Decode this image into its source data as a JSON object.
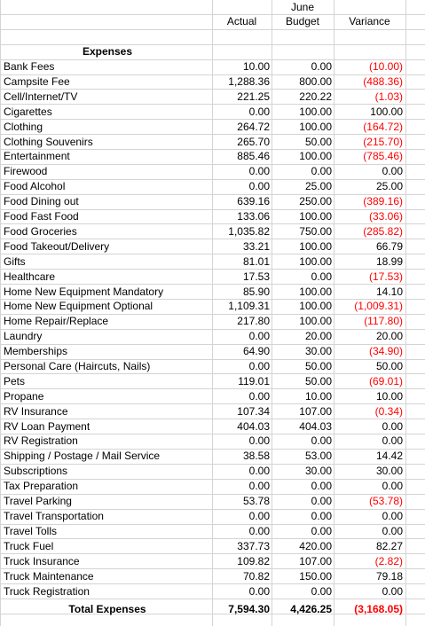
{
  "header": {
    "actual": "Actual",
    "month": "June",
    "budget": "Budget",
    "variance": "Variance"
  },
  "section_title": "Expenses",
  "rows": [
    {
      "label": "Bank Fees",
      "actual": "10.00",
      "budget": "0.00",
      "variance": "(10.00)",
      "negative": true
    },
    {
      "label": "Campsite Fee",
      "actual": "1,288.36",
      "budget": "800.00",
      "variance": "(488.36)",
      "negative": true
    },
    {
      "label": "Cell/Internet/TV",
      "actual": "221.25",
      "budget": "220.22",
      "variance": "(1.03)",
      "negative": true
    },
    {
      "label": "Cigarettes",
      "actual": "0.00",
      "budget": "100.00",
      "variance": "100.00",
      "negative": false
    },
    {
      "label": "Clothing",
      "actual": "264.72",
      "budget": "100.00",
      "variance": "(164.72)",
      "negative": true
    },
    {
      "label": "Clothing Souvenirs",
      "actual": "265.70",
      "budget": "50.00",
      "variance": "(215.70)",
      "negative": true
    },
    {
      "label": "Entertainment",
      "actual": "885.46",
      "budget": "100.00",
      "variance": "(785.46)",
      "negative": true
    },
    {
      "label": "Firewood",
      "actual": "0.00",
      "budget": "0.00",
      "variance": "0.00",
      "negative": false
    },
    {
      "label": "Food Alcohol",
      "actual": "0.00",
      "budget": "25.00",
      "variance": "25.00",
      "negative": false
    },
    {
      "label": "Food Dining out",
      "actual": "639.16",
      "budget": "250.00",
      "variance": "(389.16)",
      "negative": true
    },
    {
      "label": "Food Fast Food",
      "actual": "133.06",
      "budget": "100.00",
      "variance": "(33.06)",
      "negative": true
    },
    {
      "label": "Food Groceries",
      "actual": "1,035.82",
      "budget": "750.00",
      "variance": "(285.82)",
      "negative": true
    },
    {
      "label": "Food Takeout/Delivery",
      "actual": "33.21",
      "budget": "100.00",
      "variance": "66.79",
      "negative": false
    },
    {
      "label": "Gifts",
      "actual": "81.01",
      "budget": "100.00",
      "variance": "18.99",
      "negative": false
    },
    {
      "label": "Healthcare",
      "actual": "17.53",
      "budget": "0.00",
      "variance": "(17.53)",
      "negative": true
    },
    {
      "label": "Home New Equipment Mandatory",
      "actual": "85.90",
      "budget": "100.00",
      "variance": "14.10",
      "negative": false
    },
    {
      "label": "Home New Equipment Optional",
      "actual": "1,109.31",
      "budget": "100.00",
      "variance": "(1,009.31)",
      "negative": true
    },
    {
      "label": "Home Repair/Replace",
      "actual": "217.80",
      "budget": "100.00",
      "variance": "(117.80)",
      "negative": true
    },
    {
      "label": "Laundry",
      "actual": "0.00",
      "budget": "20.00",
      "variance": "20.00",
      "negative": false
    },
    {
      "label": "Memberships",
      "actual": "64.90",
      "budget": "30.00",
      "variance": "(34.90)",
      "negative": true
    },
    {
      "label": "Personal Care (Haircuts, Nails)",
      "actual": "0.00",
      "budget": "50.00",
      "variance": "50.00",
      "negative": false
    },
    {
      "label": "Pets",
      "actual": "119.01",
      "budget": "50.00",
      "variance": "(69.01)",
      "negative": true
    },
    {
      "label": "Propane",
      "actual": "0.00",
      "budget": "10.00",
      "variance": "10.00",
      "negative": false
    },
    {
      "label": "RV Insurance",
      "actual": "107.34",
      "budget": "107.00",
      "variance": "(0.34)",
      "negative": true
    },
    {
      "label": "RV Loan Payment",
      "actual": "404.03",
      "budget": "404.03",
      "variance": "0.00",
      "negative": false
    },
    {
      "label": "RV Registration",
      "actual": "0.00",
      "budget": "0.00",
      "variance": "0.00",
      "negative": false
    },
    {
      "label": "Shipping / Postage / Mail Service",
      "actual": "38.58",
      "budget": "53.00",
      "variance": "14.42",
      "negative": false
    },
    {
      "label": "Subscriptions",
      "actual": "0.00",
      "budget": "30.00",
      "variance": "30.00",
      "negative": false
    },
    {
      "label": "Tax Preparation",
      "actual": "0.00",
      "budget": "0.00",
      "variance": "0.00",
      "negative": false
    },
    {
      "label": "Travel Parking",
      "actual": "53.78",
      "budget": "0.00",
      "variance": "(53.78)",
      "negative": true
    },
    {
      "label": "Travel Transportation",
      "actual": "0.00",
      "budget": "0.00",
      "variance": "0.00",
      "negative": false
    },
    {
      "label": "Travel Tolls",
      "actual": "0.00",
      "budget": "0.00",
      "variance": "0.00",
      "negative": false
    },
    {
      "label": "Truck Fuel",
      "actual": "337.73",
      "budget": "420.00",
      "variance": "82.27",
      "negative": false
    },
    {
      "label": "Truck Insurance",
      "actual": "109.82",
      "budget": "107.00",
      "variance": "(2.82)",
      "negative": true
    },
    {
      "label": "Truck Maintenance",
      "actual": "70.82",
      "budget": "150.00",
      "variance": "79.18",
      "negative": false
    },
    {
      "label": "Truck Registration",
      "actual": "0.00",
      "budget": "0.00",
      "variance": "0.00",
      "negative": false
    }
  ],
  "total": {
    "label": "Total Expenses",
    "actual": "7,594.30",
    "budget": "4,426.25",
    "variance": "(3,168.05)",
    "negative": true
  },
  "colors": {
    "negative": "#ff0000",
    "gridline": "#d4d4d4"
  }
}
